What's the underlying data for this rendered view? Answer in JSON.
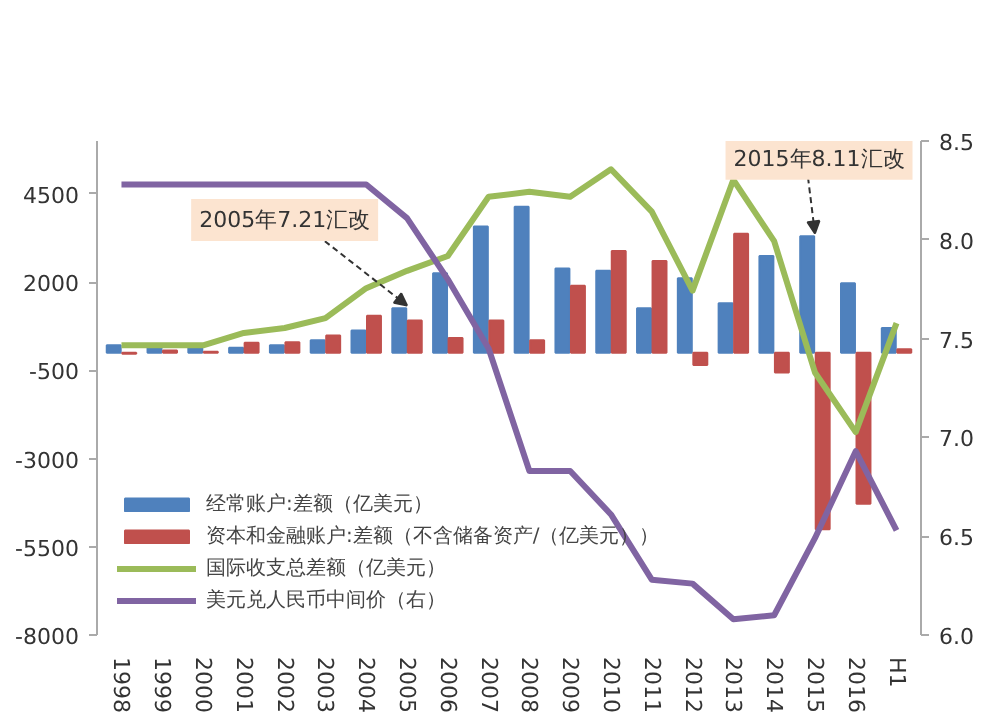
{
  "chart_data": {
    "type": "bar",
    "categories": [
      "1998",
      "1999",
      "2000",
      "2001",
      "2002",
      "2003",
      "2004",
      "2005",
      "2006",
      "2007",
      "2008",
      "2009",
      "2010",
      "2011",
      "2012",
      "2013",
      "2014",
      "2015",
      "2016",
      "H1"
    ],
    "series": [
      {
        "name": "经常账户:差额（亿美元）",
        "type": "bar",
        "color": "#4f81bd",
        "values": [
          210,
          150,
          150,
          140,
          210,
          350,
          630,
          1260,
          2250,
          3580,
          4140,
          2390,
          2320,
          1260,
          2110,
          1400,
          2740,
          3300,
          1970,
          700
        ]
      },
      {
        "name": "资本和金融账户:差额（不含储备资产/（亿美元））",
        "type": "bar",
        "color": "#c0504d",
        "values": [
          -30,
          60,
          30,
          280,
          300,
          490,
          1050,
          910,
          420,
          910,
          350,
          1900,
          2880,
          2600,
          -350,
          3370,
          -560,
          -5000,
          -4280,
          100
        ]
      },
      {
        "name": "国际收支总差额（亿美元）",
        "type": "line",
        "color": "#9bbb59",
        "values": [
          210,
          210,
          210,
          560,
          700,
          980,
          1830,
          2320,
          2740,
          4420,
          4560,
          4420,
          5200,
          4000,
          1760,
          4900,
          3160,
          -560,
          -2250,
          840
        ]
      },
      {
        "name": "美元兑人民币中间价（右）",
        "type": "line",
        "axis": "y2",
        "color": "#8064a2",
        "values": [
          8.28,
          8.28,
          8.28,
          8.28,
          8.28,
          8.28,
          8.28,
          8.11,
          7.8,
          7.45,
          6.83,
          6.83,
          6.61,
          6.28,
          6.26,
          6.08,
          6.1,
          6.49,
          6.93,
          6.53
        ]
      }
    ],
    "ylim": [
      -8000,
      6000
    ],
    "yticks": [
      -8000,
      -5500,
      -3000,
      -500,
      2000,
      4500
    ],
    "y2lim": [
      6.0,
      8.5
    ],
    "y2ticks": [
      {
        "value": 6,
        "label": "6.0"
      },
      6.5,
      {
        "value": 7,
        "label": "7.0"
      },
      7.5,
      {
        "value": 8,
        "label": "8.0"
      },
      8.5
    ],
    "annotations": [
      {
        "text": "2005年7.21汇改",
        "x": "2005",
        "y": 1260
      },
      {
        "text": "2015年8.11汇改",
        "x": "2015",
        "y": 3300
      }
    ],
    "legend": "bottom left",
    "grid": false,
    "line_style": "solid",
    "marker": "none"
  }
}
